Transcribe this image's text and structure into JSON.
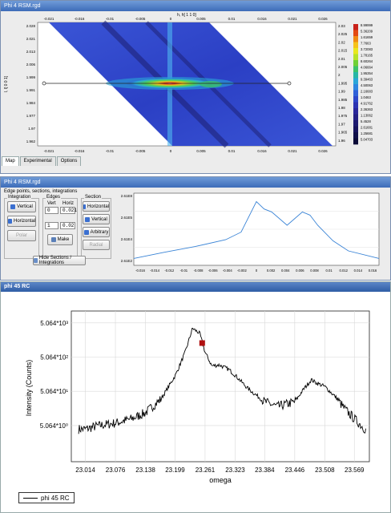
{
  "window1": {
    "title": "Phi 4 RSM.rgd",
    "x_axis_label": "h, h[ 1 1 0]",
    "y_axis_label": "l, l[ 0 0 1]",
    "x_ticks": [
      "-0.021",
      "-0.016",
      "-0.01",
      "-0.005",
      "0",
      "0.005",
      "0.01",
      "0.016",
      "0.021",
      "0.026"
    ],
    "y_ticks": [
      "2.028",
      "2.021",
      "2.013",
      "2.006",
      "1.999",
      "1.991",
      "1.984",
      "1.977",
      "1.97",
      "1.962"
    ],
    "right_ticks": [
      "2.03",
      "2.025",
      "2.02",
      "2.015",
      "2.01",
      "2.005",
      "2",
      "1.995",
      "1.99",
      "1.985",
      "1.98",
      "1.975",
      "1.97",
      "1.965",
      "1.96"
    ],
    "colorbar_labels": [
      "8.99999",
      "5.36209",
      "1.61659",
      "7.7663",
      "3.72083",
      "1.78165",
      "8.60264",
      "4.06664",
      "1.95354",
      "9.39463",
      "4.50063",
      "2.16683",
      "1.0463",
      "4.91762",
      "2.36363",
      "1.13062",
      "5.4528",
      "2.61681",
      "1.25681",
      "5.04703"
    ],
    "colorbar_colors": [
      "#c9211a",
      "#e34a12",
      "#f08a12",
      "#f6c21a",
      "#e8e81e",
      "#b6e22a",
      "#6fd035",
      "#3cc26a",
      "#27b6a6",
      "#2aa6d8",
      "#2e86e0",
      "#3060d8",
      "#2e46c8",
      "#2c33b2",
      "#2a279a",
      "#242084",
      "#1d1a70",
      "#17145d",
      "#10104a",
      "#0b0b38"
    ],
    "tabs": [
      "Map",
      "Experimental",
      "Options"
    ]
  },
  "window2": {
    "title": "Phi 4 RSM.rgd",
    "subtitle": "Edge points, sections, integrations",
    "integration": {
      "group_label": "Integration",
      "vertical": "Vertical",
      "horizontal": "Horizontal",
      "polar": "Polar"
    },
    "edges": {
      "group_label": "Edges",
      "vert_label": "Vert",
      "horiz_label": "Horiz",
      "vert_top": "0",
      "horiz_top": "0.021",
      "vert_bottom": "1",
      "horiz_bottom": "0.02",
      "make": "Make"
    },
    "section": {
      "group_label": "Section",
      "horizontal": "Horizontal",
      "vertical": "Vertical",
      "arbitrary": "Arbitrary",
      "radial": "Radial"
    },
    "hide_button": "Hide Sections / Integrations",
    "profile_y_ticks": [
      "2.61E8",
      "2.61E5",
      "2.61E4",
      "2.61E2"
    ],
    "profile_x_ticks": [
      "-0.016",
      "-0.014",
      "-0.012",
      "-0.01",
      "-0.008",
      "-0.006",
      "-0.004",
      "-0.002",
      "0",
      "0.002",
      "0.004",
      "0.006",
      "0.008",
      "0.01",
      "0.012",
      "0.014",
      "0.016"
    ]
  },
  "window3": {
    "title": "phi 45 RC",
    "y_axis_label": "Intensity (Counts)",
    "x_axis_label": "omega",
    "y_ticks": [
      "5.064*10³",
      "5.064*10²",
      "5.064*10¹",
      "5.064*10⁰"
    ],
    "x_ticks": [
      "23.014",
      "23.076",
      "23.138",
      "23.199",
      "23.261",
      "23.323",
      "23.384",
      "23.446",
      "23.508",
      "23.569"
    ],
    "legend": "phi 45 RC",
    "series_color": "#000000",
    "marker_color": "#b01010"
  },
  "chart_data": [
    {
      "type": "line",
      "title": "",
      "xlabel": "",
      "ylabel": "",
      "log_y": true,
      "x": [
        -0.016,
        -0.012,
        -0.008,
        -0.004,
        -0.002,
        0,
        0.001,
        0.002,
        0.004,
        0.006,
        0.007,
        0.008,
        0.01,
        0.012,
        0.016
      ],
      "y": [
        300,
        800,
        2000,
        6000,
        20000,
        2600000,
        800000,
        500000,
        60000,
        500000,
        300000,
        60000,
        5000,
        1000,
        300
      ],
      "series": [
        {
          "color": "#3a84d6"
        }
      ]
    },
    {
      "type": "line",
      "title": "",
      "xlabel": "omega",
      "ylabel": "Intensity (Counts)",
      "log_y": true,
      "x": [
        23.014,
        23.04,
        23.076,
        23.11,
        23.138,
        23.17,
        23.2,
        23.22,
        23.235,
        23.25,
        23.261,
        23.275,
        23.29,
        23.31,
        23.323,
        23.35,
        23.384,
        23.41,
        23.446,
        23.465,
        23.48,
        23.49,
        23.508,
        23.53,
        23.55,
        23.569,
        23.6
      ],
      "y": [
        4,
        5,
        6,
        8,
        12,
        30,
        150,
        700,
        3500,
        2500,
        700,
        280,
        300,
        220,
        150,
        60,
        25,
        18,
        25,
        60,
        110,
        90,
        70,
        35,
        15,
        8,
        3
      ],
      "series": [
        {
          "name": "phi 45 RC",
          "color": "#000000"
        }
      ],
      "marker": {
        "x": 23.255,
        "y": 1300
      }
    }
  ]
}
